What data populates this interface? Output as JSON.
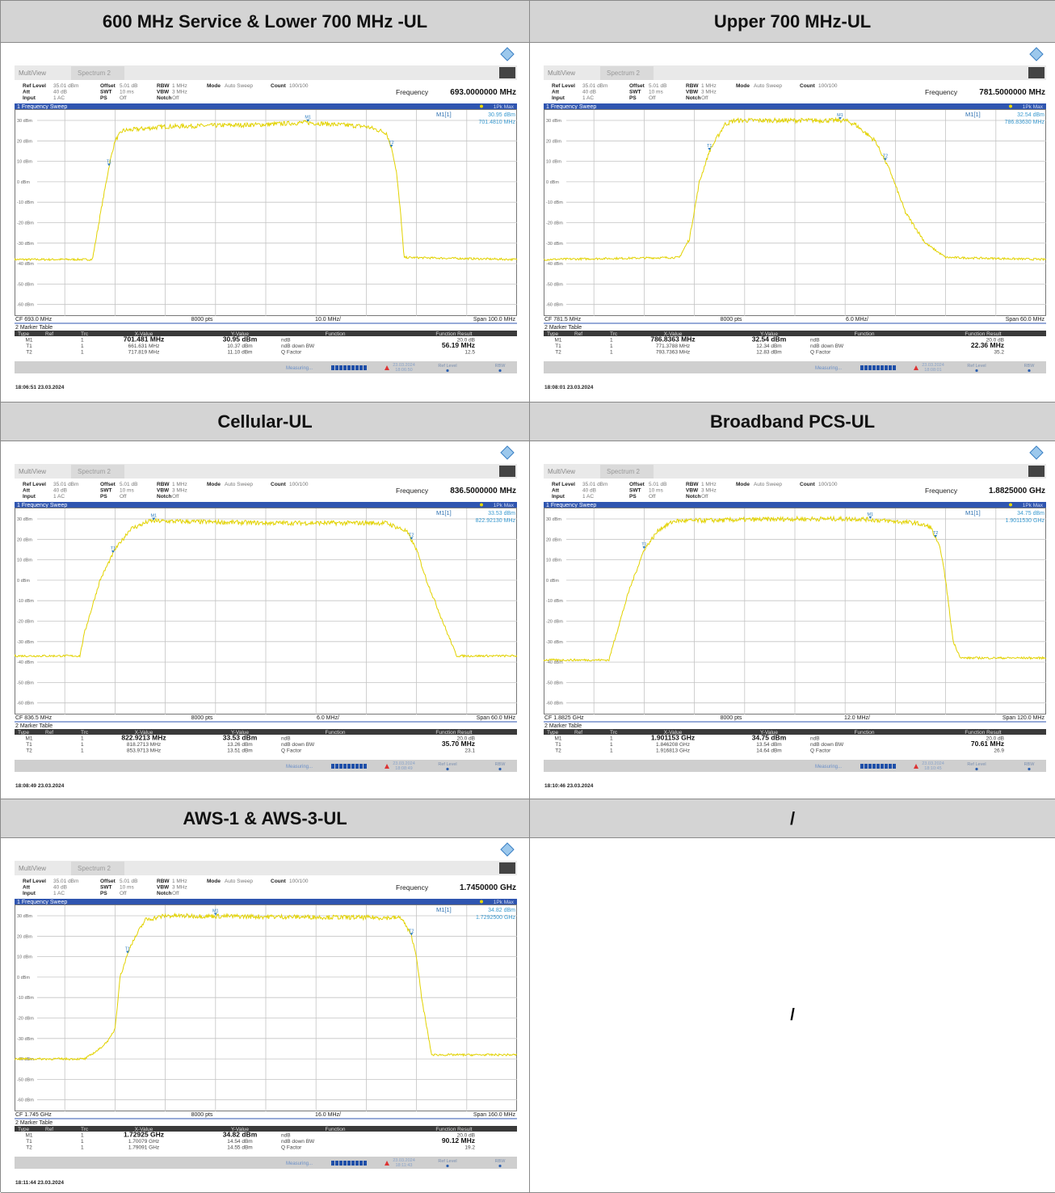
{
  "table": {
    "cells": [
      {
        "heading": "600 MHz Service & Lower 700 MHz -UL",
        "screen": {
          "frequency": "693.0000000 MHz",
          "readout_value": "30.95 dBm",
          "readout_freq": "701.4810 MHz",
          "cf": "CF 693.0 MHz",
          "div": "10.0 MHz/",
          "span": "Span 100.0 MHz",
          "rows": [
            [
              "M1",
              "1",
              "701.481 MHz",
              "30.95 dBm",
              "ndB",
              "20.0 dB"
            ],
            [
              "T1",
              "1",
              "661.631 MHz",
              "10.37 dBm",
              "ndB down BW",
              "56.19 MHz"
            ],
            [
              "T2",
              "1",
              "717.819 MHz",
              "11.10 dBm",
              "Q Factor",
              "12.5"
            ]
          ],
          "status_time": "18:06:50",
          "timestamp": "18:06:51  23.03.2024"
        }
      },
      {
        "heading": "Upper 700 MHz-UL",
        "screen": {
          "frequency": "781.5000000 MHz",
          "readout_value": "32.54 dBm",
          "readout_freq": "786.83630 MHz",
          "cf": "CF 781.5 MHz",
          "div": "6.0 MHz/",
          "span": "Span 60.0 MHz",
          "rows": [
            [
              "M1",
              "1",
              "786.8363 MHz",
              "32.54 dBm",
              "ndB",
              "20.0 dB"
            ],
            [
              "T1",
              "1",
              "771.3788 MHz",
              "12.34 dBm",
              "ndB down BW",
              "22.36 MHz"
            ],
            [
              "T2",
              "1",
              "793.7363 MHz",
              "12.83 dBm",
              "Q Factor",
              "35.2"
            ]
          ],
          "status_time": "18:08:01",
          "timestamp": "18:08:01  23.03.2024"
        }
      },
      {
        "heading": "Cellular-UL",
        "screen": {
          "frequency": "836.5000000 MHz",
          "readout_value": "33.53 dBm",
          "readout_freq": "822.92130 MHz",
          "cf": "CF 836.5 MHz",
          "div": "6.0 MHz/",
          "span": "Span 60.0 MHz",
          "rows": [
            [
              "M1",
              "1",
              "822.9213 MHz",
              "33.53 dBm",
              "ndB",
              "20.0 dB"
            ],
            [
              "T1",
              "1",
              "818.2713 MHz",
              "13.26 dBm",
              "ndB down BW",
              "35.70 MHz"
            ],
            [
              "T2",
              "1",
              "853.9713 MHz",
              "13.51 dBm",
              "Q Factor",
              "23.1"
            ]
          ],
          "status_time": "18:08:49",
          "timestamp": "18:08:49  23.03.2024"
        }
      },
      {
        "heading": "Broadband PCS-UL",
        "screen": {
          "frequency": "1.8825000 GHz",
          "readout_value": "34.75 dBm",
          "readout_freq": "1.9011530 GHz",
          "cf": "CF 1.8825 GHz",
          "div": "12.0 MHz/",
          "span": "Span 120.0 MHz",
          "rows": [
            [
              "M1",
              "1",
              "1.901153 GHz",
              "34.75 dBm",
              "ndB",
              "20.0 dB"
            ],
            [
              "T1",
              "1",
              "1.846208 GHz",
              "13.54 dBm",
              "ndB down BW",
              "70.61 MHz"
            ],
            [
              "T2",
              "1",
              "1.916813 GHz",
              "14.64 dBm",
              "Q Factor",
              "26.9"
            ]
          ],
          "status_time": "18:10:45",
          "timestamp": "18:10:46  23.03.2024"
        }
      },
      {
        "heading": "AWS-1 & AWS-3-UL",
        "screen": {
          "frequency": "1.7450000 GHz",
          "readout_value": "34.82 dBm",
          "readout_freq": "1.7292500 GHz",
          "cf": "CF 1.745 GHz",
          "div": "16.0 MHz/",
          "span": "Span 160.0 MHz",
          "rows": [
            [
              "M1",
              "1",
              "1.72925 GHz",
              "34.82 dBm",
              "ndB",
              "20.0 dB"
            ],
            [
              "T1",
              "1",
              "1.70079 GHz",
              "14.54 dBm",
              "ndB down BW",
              "90.12 MHz"
            ],
            [
              "T2",
              "1",
              "1.79091 GHz",
              "14.55 dBm",
              "Q Factor",
              "19.2"
            ]
          ],
          "status_time": "18:11:43",
          "timestamp": "18:11:44  23.03.2024"
        }
      },
      {
        "heading": "/",
        "body": "/"
      }
    ]
  },
  "analyzer": {
    "tabs": [
      "MultiView",
      "Spectrum 2"
    ],
    "settings": [
      [
        [
          "Ref Level",
          "35.01 dBm"
        ],
        [
          "Offset",
          "5.01 dB"
        ],
        [
          "RBW",
          "1 MHz"
        ],
        [
          "Mode",
          "Auto Sweep"
        ],
        [
          "Count",
          "100/100"
        ]
      ],
      [
        [
          "Att",
          "40 dB"
        ],
        [
          "SWT",
          "10 ms"
        ],
        [
          "VBW",
          "3 MHz"
        ]
      ],
      [
        [
          "Input",
          "1 AC"
        ],
        [
          "PS",
          "Off"
        ],
        [
          "Notch",
          "Off"
        ]
      ]
    ],
    "frequency_label": "Frequency",
    "window_title": "1 Frequency Sweep",
    "trace_label": "1Pk Max",
    "readout_label": "M1[1]",
    "y_labels": [
      "30 dBm",
      "20 dBm",
      "10 dBm",
      "0 dBm",
      "-10 dBm",
      "-20 dBm",
      "-30 dBm",
      "-40 dBm",
      "-50 dBm",
      "-60 dBm"
    ],
    "points": "8000 pts",
    "table_title": "2 Marker Table",
    "columns": [
      "Type",
      "Ref",
      "Trc",
      "X-Value",
      "Y-Value",
      "Function",
      "Function Result"
    ],
    "status": {
      "measuring": "Measuring...",
      "ref_level": "Ref Level",
      "rbw": "RBW",
      "date": "23.03.2024"
    }
  }
}
